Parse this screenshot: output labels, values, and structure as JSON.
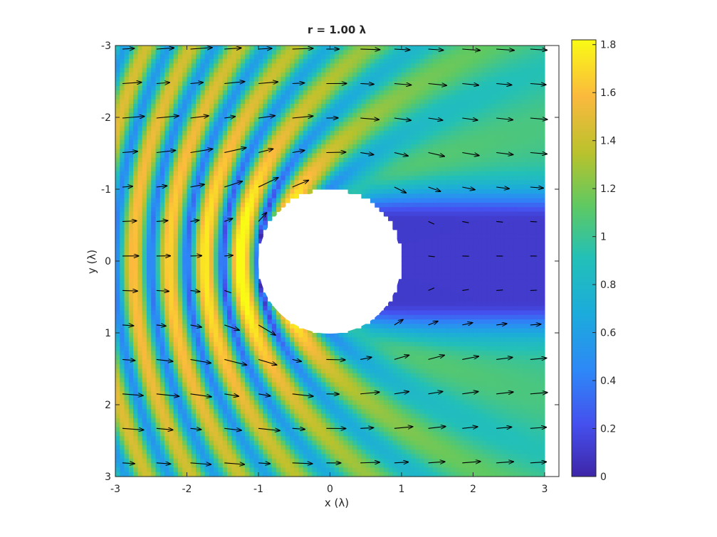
{
  "chart_data": {
    "type": "heatmap",
    "title": "r = 1.00 λ",
    "xlabel": "x (λ)",
    "ylabel": "y (λ)",
    "xlim": [
      -3,
      3.2
    ],
    "ylim": [
      -3,
      3
    ],
    "y_direction": "reversed",
    "xticks": [
      -3,
      -2,
      -1,
      0,
      1,
      2,
      3
    ],
    "xtick_labels": [
      "-3",
      "-2",
      "-1",
      "0",
      "1",
      "2",
      "3"
    ],
    "yticks": [
      -3,
      -2,
      -1,
      0,
      1,
      2,
      3
    ],
    "ytick_labels": [
      "-3",
      "-2",
      "-1",
      "0",
      "1",
      "2",
      "3"
    ],
    "field_extent": {
      "x": [
        -3,
        3
      ],
      "y": [
        -3,
        3
      ]
    },
    "obstacle": {
      "shape": "circle",
      "center": [
        0,
        0
      ],
      "radius": 1.0
    },
    "colormap": "parula",
    "colorbar": {
      "limits": [
        0,
        1.82
      ],
      "ticks": [
        0,
        0.2,
        0.4,
        0.6,
        0.8,
        1,
        1.2,
        1.4,
        1.6,
        1.8
      ],
      "tick_labels": [
        "0",
        "0.2",
        "0.4",
        "0.6",
        "0.8",
        "1",
        "1.2",
        "1.4",
        "1.6",
        "1.8"
      ]
    },
    "quiver": {
      "grid_x": [
        -2.9,
        3.0,
        0.475
      ],
      "grid_y": [
        -2.95,
        2.85,
        0.48
      ]
    },
    "grid": false,
    "legend": "none"
  }
}
